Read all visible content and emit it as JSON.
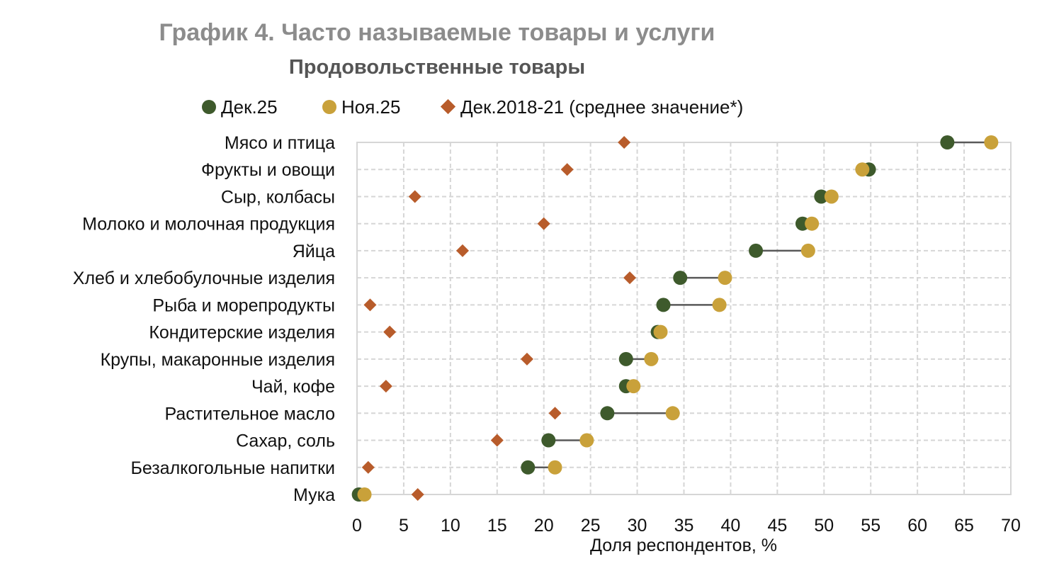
{
  "chart_data": {
    "type": "dot-plot",
    "title": "График 4. Часто называемые товары и услуги",
    "subtitle": "Продовольственные товары",
    "xlabel": "Доля респондентов, %",
    "xlim": [
      0,
      70
    ],
    "xticks": [
      0,
      5,
      10,
      15,
      20,
      25,
      30,
      35,
      40,
      45,
      50,
      55,
      60,
      65,
      70
    ],
    "grid": true,
    "legend_position": "top",
    "categories": [
      "Мясо и птица",
      "Фрукты и овощи",
      "Сыр, колбасы",
      "Молоко и молочная продукция",
      "Яйца",
      "Хлеб и хлебобулочные изделия",
      "Рыба и морепродукты",
      "Кондитерские изделия",
      "Крупы, макаронные изделия",
      "Чай, кофе",
      "Растительное масло",
      "Сахар, соль",
      "Безалкогольные напитки",
      "Мука"
    ],
    "series": [
      {
        "name": "Дек.25",
        "marker": "circle",
        "color": "#3e5a2c",
        "values": [
          63.2,
          54.8,
          49.7,
          47.7,
          42.7,
          34.6,
          32.8,
          32.2,
          28.8,
          28.8,
          26.8,
          20.5,
          18.3,
          0.2
        ]
      },
      {
        "name": "Ноя.25",
        "marker": "circle",
        "color": "#c9a13a",
        "values": [
          67.9,
          54.1,
          50.8,
          48.7,
          48.3,
          39.4,
          38.8,
          32.5,
          31.5,
          29.6,
          33.8,
          24.6,
          21.2,
          0.8
        ]
      },
      {
        "name": "Дек.2018-21 (среднее значение*)",
        "marker": "diamond",
        "color": "#b85c2b",
        "values": [
          28.6,
          22.5,
          6.2,
          20.0,
          11.3,
          29.2,
          1.4,
          3.5,
          18.2,
          3.1,
          21.2,
          15.0,
          1.2,
          6.5
        ]
      }
    ]
  }
}
